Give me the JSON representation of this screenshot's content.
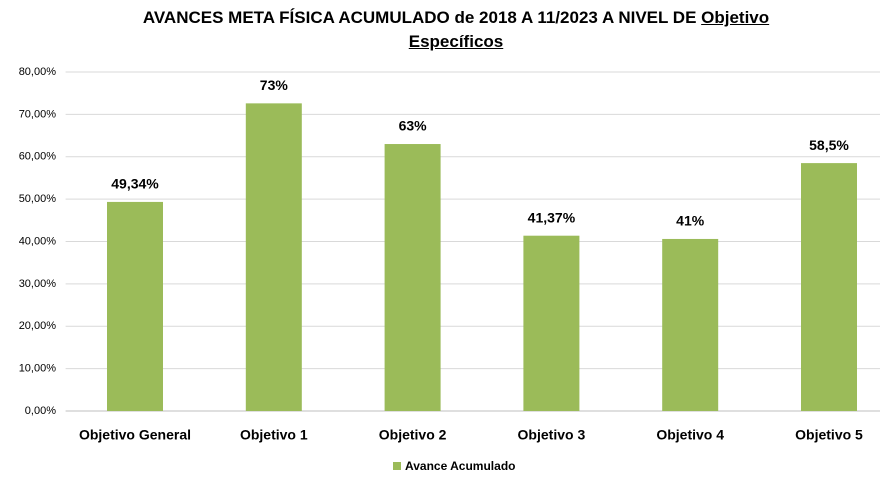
{
  "chart_data": {
    "type": "bar",
    "title": "AVANCES META FÍSICA ACUMULADO de 2018 A 11/2023 A NIVEL DE",
    "title_emphasis": "Objetivo Específicos",
    "categories": [
      "Objetivo General",
      "Objetivo 1",
      "Objetivo 2",
      "Objetivo 3",
      "Objetivo 4",
      "Objetivo 5"
    ],
    "series": [
      {
        "name": "Avance Acumulado",
        "color": "#9bbb59",
        "values": [
          49.34,
          72.6,
          63,
          41.37,
          40.6,
          58.5
        ],
        "value_labels": [
          "49,34%",
          "73%",
          "63%",
          "41,37%",
          "41%",
          "58,5%"
        ]
      }
    ],
    "ylim": [
      0,
      80
    ],
    "yticks": [
      {
        "value": 0,
        "label": "0,00%"
      },
      {
        "value": 10,
        "label": "10,00%"
      },
      {
        "value": 20,
        "label": "20,00%"
      },
      {
        "value": 30,
        "label": "30,00%"
      },
      {
        "value": 40,
        "label": "40,00%"
      },
      {
        "value": 50,
        "label": "50,00%"
      },
      {
        "value": 60,
        "label": "60,00%"
      },
      {
        "value": 70,
        "label": "70,00%"
      },
      {
        "value": 80,
        "label": "80,00%"
      }
    ],
    "grid": true,
    "legend": "bottom"
  }
}
